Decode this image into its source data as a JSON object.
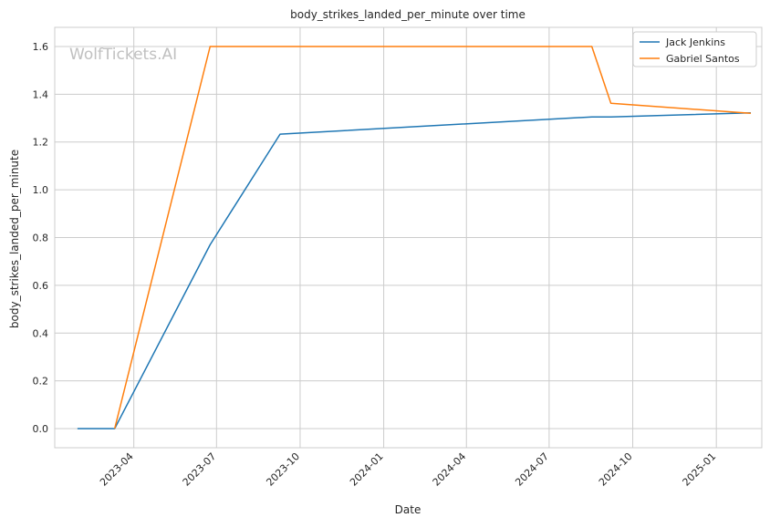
{
  "chart_data": {
    "type": "line",
    "title": "body_strikes_landed_per_minute over time",
    "xlabel": "Date",
    "ylabel": "body_strikes_landed_per_minute",
    "watermark": "WolfTickets.AI",
    "x_ticks": [
      "2023-04",
      "2023-07",
      "2023-10",
      "2024-01",
      "2024-04",
      "2024-07",
      "2024-10",
      "2025-01"
    ],
    "y_ticks": [
      "0.0",
      "0.2",
      "0.4",
      "0.6",
      "0.8",
      "1.0",
      "1.2",
      "1.4",
      "1.6"
    ],
    "xlim": [
      "2023-01-04",
      "2025-02-20"
    ],
    "ylim": [
      -0.08,
      1.68
    ],
    "grid": true,
    "legend_position": "top-right",
    "series": [
      {
        "name": "Jack Jenkins",
        "color": "#1f77b4",
        "points": [
          {
            "x": "2023-01-29",
            "y": 0.0
          },
          {
            "x": "2023-03-11",
            "y": 0.0
          },
          {
            "x": "2023-06-24",
            "y": 0.77
          },
          {
            "x": "2023-09-09",
            "y": 1.233
          },
          {
            "x": "2024-08-17",
            "y": 1.305
          },
          {
            "x": "2024-09-07",
            "y": 1.305
          },
          {
            "x": "2025-02-08",
            "y": 1.322
          }
        ]
      },
      {
        "name": "Gabriel Santos",
        "color": "#ff7f0e",
        "points": [
          {
            "x": "2023-03-11",
            "y": 0.0
          },
          {
            "x": "2023-06-24",
            "y": 1.6
          },
          {
            "x": "2024-08-17",
            "y": 1.6
          },
          {
            "x": "2024-09-07",
            "y": 1.362
          },
          {
            "x": "2025-02-08",
            "y": 1.32
          }
        ]
      }
    ]
  }
}
